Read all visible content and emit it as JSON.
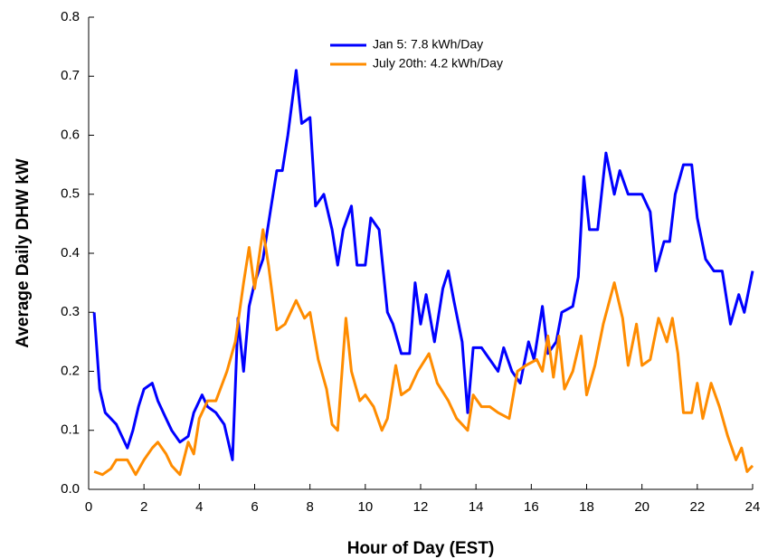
{
  "chart_data": {
    "type": "line",
    "xlabel": "Hour of Day (EST)",
    "ylabel": "Average Daily DHW kW",
    "xlim": [
      0,
      24
    ],
    "xticks": [
      0,
      2,
      4,
      6,
      8,
      10,
      12,
      14,
      16,
      18,
      20,
      22,
      24
    ],
    "ylim": [
      0,
      0.8
    ],
    "yticks": [
      {
        "value": 0,
        "label": "0.0"
      },
      0.1,
      0.2,
      0.3,
      0.4,
      0.5,
      0.6,
      0.7,
      0.8
    ],
    "legend": "top",
    "series": [
      {
        "name": "Jan 5: 7.8 kWh/Day",
        "color": "#0000ff",
        "x": [
          0.2,
          0.4,
          0.6,
          0.8,
          1.0,
          1.2,
          1.4,
          1.6,
          1.8,
          2.0,
          2.3,
          2.5,
          2.8,
          3.0,
          3.3,
          3.6,
          3.8,
          4.1,
          4.3,
          4.6,
          4.9,
          5.2,
          5.4,
          5.6,
          5.8,
          6.0,
          6.3,
          6.6,
          6.8,
          7.0,
          7.2,
          7.5,
          7.7,
          8.0,
          8.2,
          8.5,
          8.8,
          9.0,
          9.2,
          9.5,
          9.7,
          10.0,
          10.2,
          10.5,
          10.8,
          11.0,
          11.3,
          11.6,
          11.8,
          12.0,
          12.2,
          12.5,
          12.8,
          13.0,
          13.2,
          13.5,
          13.7,
          13.9,
          14.2,
          14.5,
          14.8,
          15.0,
          15.3,
          15.6,
          15.9,
          16.1,
          16.4,
          16.6,
          16.9,
          17.1,
          17.5,
          17.7,
          17.9,
          18.1,
          18.4,
          18.7,
          19.0,
          19.2,
          19.5,
          20.0,
          20.3,
          20.5,
          20.8,
          21.0,
          21.2,
          21.5,
          21.8,
          22.0,
          22.3,
          22.6,
          22.9,
          23.2,
          23.5,
          23.7,
          24.0
        ],
        "values": [
          0.3,
          0.17,
          0.13,
          0.12,
          0.11,
          0.09,
          0.07,
          0.1,
          0.14,
          0.17,
          0.18,
          0.15,
          0.12,
          0.1,
          0.08,
          0.09,
          0.13,
          0.16,
          0.14,
          0.13,
          0.11,
          0.05,
          0.29,
          0.2,
          0.31,
          0.35,
          0.39,
          0.48,
          0.54,
          0.54,
          0.6,
          0.71,
          0.62,
          0.63,
          0.48,
          0.5,
          0.44,
          0.38,
          0.44,
          0.48,
          0.38,
          0.38,
          0.46,
          0.44,
          0.3,
          0.28,
          0.23,
          0.23,
          0.35,
          0.28,
          0.33,
          0.25,
          0.34,
          0.37,
          0.32,
          0.25,
          0.13,
          0.24,
          0.24,
          0.22,
          0.2,
          0.24,
          0.2,
          0.18,
          0.25,
          0.22,
          0.31,
          0.23,
          0.25,
          0.3,
          0.31,
          0.36,
          0.53,
          0.44,
          0.44,
          0.57,
          0.5,
          0.54,
          0.5,
          0.5,
          0.47,
          0.37,
          0.42,
          0.42,
          0.5,
          0.55,
          0.55,
          0.46,
          0.39,
          0.37,
          0.37,
          0.28,
          0.33,
          0.3,
          0.37
        ]
      },
      {
        "name": "July 20th: 4.2 kWh/Day",
        "color": "#ff8c00",
        "x": [
          0.2,
          0.5,
          0.8,
          1.0,
          1.4,
          1.7,
          2.0,
          2.3,
          2.5,
          2.8,
          3.0,
          3.3,
          3.6,
          3.8,
          4.0,
          4.3,
          4.6,
          5.0,
          5.3,
          5.6,
          5.8,
          6.0,
          6.3,
          6.5,
          6.8,
          7.1,
          7.5,
          7.8,
          8.0,
          8.3,
          8.6,
          8.8,
          9.0,
          9.3,
          9.5,
          9.8,
          10.0,
          10.3,
          10.6,
          10.8,
          11.1,
          11.3,
          11.6,
          11.9,
          12.3,
          12.6,
          13.0,
          13.3,
          13.7,
          13.9,
          14.2,
          14.5,
          14.8,
          15.2,
          15.5,
          15.8,
          16.2,
          16.4,
          16.6,
          16.8,
          17.0,
          17.2,
          17.5,
          17.8,
          18.0,
          18.3,
          18.6,
          19.0,
          19.3,
          19.5,
          19.8,
          20.0,
          20.3,
          20.6,
          20.9,
          21.1,
          21.3,
          21.5,
          21.8,
          22.0,
          22.2,
          22.5,
          22.8,
          23.1,
          23.4,
          23.6,
          23.8,
          24.0
        ],
        "values": [
          0.03,
          0.025,
          0.035,
          0.05,
          0.05,
          0.025,
          0.05,
          0.07,
          0.08,
          0.06,
          0.04,
          0.025,
          0.08,
          0.06,
          0.12,
          0.15,
          0.15,
          0.2,
          0.25,
          0.35,
          0.41,
          0.34,
          0.44,
          0.38,
          0.27,
          0.28,
          0.32,
          0.29,
          0.3,
          0.22,
          0.17,
          0.11,
          0.1,
          0.29,
          0.2,
          0.15,
          0.16,
          0.14,
          0.1,
          0.12,
          0.21,
          0.16,
          0.17,
          0.2,
          0.23,
          0.18,
          0.15,
          0.12,
          0.1,
          0.16,
          0.14,
          0.14,
          0.13,
          0.12,
          0.2,
          0.21,
          0.22,
          0.2,
          0.26,
          0.19,
          0.26,
          0.17,
          0.2,
          0.26,
          0.16,
          0.21,
          0.28,
          0.35,
          0.29,
          0.21,
          0.28,
          0.21,
          0.22,
          0.29,
          0.25,
          0.29,
          0.23,
          0.13,
          0.13,
          0.18,
          0.12,
          0.18,
          0.14,
          0.09,
          0.05,
          0.07,
          0.03,
          0.04
        ]
      }
    ]
  }
}
